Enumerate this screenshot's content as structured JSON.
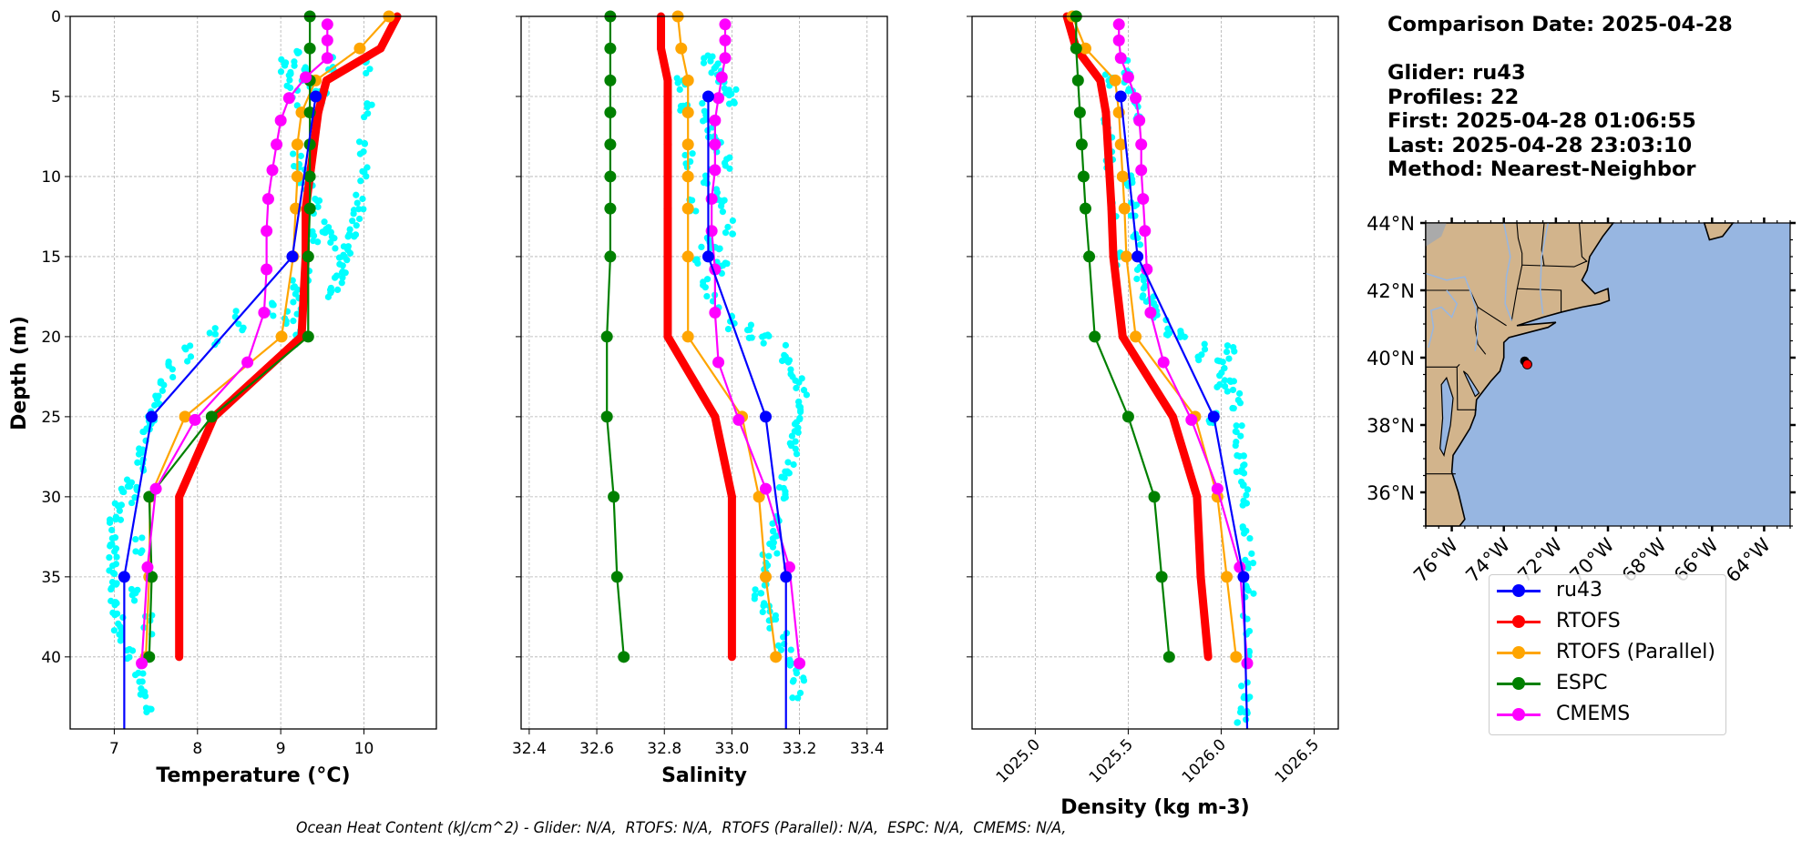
{
  "info": {
    "comparison_date": "Comparison Date: 2025-04-28",
    "glider": "Glider: ru43",
    "profiles": "Profiles: 22",
    "first": "First: 2025-04-28 01:06:55",
    "last": "Last: 2025-04-28 23:03:10",
    "method": "Method: Nearest-Neighbor"
  },
  "footer": "Ocean Heat Content (kJ/cm^2) - Glider: N/A,  RTOFS: N/A,  RTOFS (Parallel): N/A,  ESPC: N/A,  CMEMS: N/A,",
  "legend": [
    {
      "name": "ru43",
      "color": "#0000ff"
    },
    {
      "name": "RTOFS",
      "color": "#ff0000"
    },
    {
      "name": "RTOFS (Parallel)",
      "color": "#ffa500"
    },
    {
      "name": "ESPC",
      "color": "#008000"
    },
    {
      "name": "CMEMS",
      "color": "#ff00ff"
    }
  ],
  "chart_data": [
    {
      "type": "line",
      "title": "",
      "xlabel": "Temperature (°C)",
      "ylabel": "Depth (m)",
      "xlim": [
        6.47,
        10.87
      ],
      "ylim": [
        44.5,
        0
      ],
      "xticks": [
        7,
        8,
        9,
        10
      ],
      "xtick_labels": [
        "7",
        "8",
        "9",
        "10"
      ],
      "yticks": [
        0,
        5,
        10,
        15,
        20,
        25,
        30,
        35,
        40
      ],
      "ytick_labels": [
        "0",
        "5",
        "10",
        "15",
        "20",
        "25",
        "30",
        "35",
        "40"
      ],
      "grid": true,
      "glider_scatter": {
        "color": "#00ffff",
        "description": "raw glider points",
        "clusters": [
          {
            "x": [
              9.05,
              9.1,
              9.15,
              9.2,
              9.3,
              9.4,
              9.5,
              9.6,
              10.05,
              10.0,
              9.2,
              9.25,
              9.35,
              9.45,
              9.55,
              9.65,
              9.75,
              9.3,
              9.15,
              9.2,
              9.1,
              9.2,
              9.4,
              10.05,
              10.0,
              9.95,
              9.9,
              9.85,
              9.8,
              9.75,
              9.7,
              9.6,
              8.9,
              8.5,
              8.2,
              7.9,
              7.7,
              7.6,
              7.5,
              7.45,
              7.4,
              7.35,
              7.3,
              7.2,
              7.1,
              7.05,
              7.0,
              7.0,
              6.98,
              6.97,
              6.98,
              7.0,
              7.05,
              7.1,
              7.2,
              7.3,
              7.35,
              7.4,
              7.4,
              7.3,
              7.25,
              7.25
            ],
            "y": [
              3,
              4,
              5,
              2.5,
              3.5,
              4.5,
              5,
              3,
              3,
              8,
              9,
              10,
              11,
              12,
              13,
              14,
              15,
              16,
              17,
              18,
              19,
              20,
              14,
              6,
              10,
              11.5,
              12.5,
              13.5,
              14.5,
              15.5,
              16.5,
              17.5,
              18.5,
              19,
              20,
              21,
              22,
              23,
              24,
              25,
              26,
              27,
              28,
              29,
              30,
              31,
              32,
              33,
              34,
              35,
              36,
              37,
              38,
              39,
              40,
              41,
              42,
              43,
              38,
              33,
              30,
              36
            ]
          }
        ]
      },
      "series": [
        {
          "name": "ru43",
          "color": "#0000ff",
          "depth": [
            5,
            15,
            25,
            35,
            44.5
          ],
          "values": [
            9.42,
            9.14,
            7.45,
            7.12,
            7.12
          ]
        },
        {
          "name": "RTOFS",
          "color": "#ff0000",
          "linewidth": "thick",
          "depth": [
            0,
            2,
            4,
            6,
            8,
            10,
            12,
            15,
            20,
            25,
            30,
            35,
            40
          ],
          "values": [
            10.4,
            10.2,
            9.55,
            9.45,
            9.4,
            9.35,
            9.3,
            9.3,
            9.25,
            8.2,
            7.78,
            7.78,
            7.78
          ]
        },
        {
          "name": "RTOFS (Parallel)",
          "color": "#ffa500",
          "depth": [
            0,
            2,
            4,
            6,
            8,
            10,
            12,
            15,
            20,
            25,
            30,
            35,
            40
          ],
          "values": [
            10.3,
            9.95,
            9.42,
            9.25,
            9.2,
            9.2,
            9.18,
            9.15,
            9.01,
            7.85,
            7.43,
            7.42,
            7.38
          ]
        },
        {
          "name": "ESPC",
          "color": "#008000",
          "depth": [
            0,
            2,
            4,
            6,
            8,
            10,
            12,
            15,
            20,
            25,
            30,
            35,
            40
          ],
          "values": [
            9.35,
            9.35,
            9.35,
            9.35,
            9.35,
            9.35,
            9.35,
            9.33,
            9.33,
            8.17,
            7.42,
            7.45,
            7.42
          ]
        },
        {
          "name": "CMEMS",
          "color": "#ff00ff",
          "depth": [
            0.5,
            1.5,
            2.6,
            3.8,
            5.1,
            6.5,
            8,
            9.6,
            11.4,
            13.4,
            15.8,
            18.5,
            21.6,
            25.2,
            29.5,
            34.4,
            40.4
          ],
          "values": [
            9.56,
            9.56,
            9.56,
            9.3,
            9.1,
            9.0,
            8.95,
            8.9,
            8.85,
            8.83,
            8.83,
            8.8,
            8.6,
            7.97,
            7.5,
            7.4,
            7.33
          ]
        }
      ]
    },
    {
      "type": "line",
      "title": "",
      "xlabel": "Salinity",
      "ylabel": "",
      "xlim": [
        32.376,
        33.46
      ],
      "ylim": [
        44.5,
        0
      ],
      "xticks": [
        32.4,
        32.6,
        32.8,
        33.0,
        33.2,
        33.4
      ],
      "xtick_labels": [
        "32.4",
        "32.6",
        "32.8",
        "33.0",
        "33.2",
        "33.4"
      ],
      "yticks": [
        0,
        5,
        10,
        15,
        20,
        25,
        30,
        35,
        40
      ],
      "grid": true,
      "glider_scatter": {
        "color": "#00ffff",
        "clusters": [
          {
            "x": [
              32.93,
              32.95,
              32.97,
              32.99,
              33.0,
              32.92,
              32.94,
              32.96,
              32.98,
              32.93,
              32.95,
              32.97,
              32.99,
              32.94,
              32.96,
              32.98,
              32.85,
              32.86,
              32.87,
              32.88,
              32.9,
              32.92,
              32.95,
              33.0,
              33.05,
              33.1,
              33.15,
              33.18,
              33.2,
              33.21,
              33.2,
              33.19,
              33.18,
              33.17,
              33.16,
              33.15,
              33.14,
              33.13,
              33.12,
              33.1,
              33.09,
              33.08,
              33.1,
              33.12,
              33.15,
              33.18,
              33.2,
              33.19
            ],
            "y": [
              3,
              3.5,
              4,
              4.5,
              5,
              6,
              7,
              8,
              9,
              10,
              11,
              12,
              13,
              14,
              15,
              16,
              4,
              6,
              9,
              12,
              15,
              17,
              18,
              19,
              19.5,
              20,
              21,
              22,
              23,
              24,
              25,
              26,
              27,
              28,
              29,
              30,
              31,
              32,
              33,
              34,
              35,
              36,
              37,
              38,
              39,
              40,
              41,
              42
            ]
          }
        ]
      },
      "series": [
        {
          "name": "ru43",
          "color": "#0000ff",
          "depth": [
            5,
            15,
            25,
            35,
            44.5
          ],
          "values": [
            32.93,
            32.93,
            33.1,
            33.16,
            33.16
          ]
        },
        {
          "name": "RTOFS",
          "color": "#ff0000",
          "linewidth": "thick",
          "depth": [
            0,
            2,
            4,
            6,
            8,
            10,
            12,
            15,
            20,
            25,
            30,
            35,
            40
          ],
          "values": [
            32.79,
            32.79,
            32.81,
            32.81,
            32.81,
            32.81,
            32.81,
            32.81,
            32.81,
            32.95,
            33.0,
            33.0,
            33.0
          ]
        },
        {
          "name": "RTOFS (Parallel)",
          "color": "#ffa500",
          "depth": [
            0,
            2,
            4,
            6,
            8,
            10,
            12,
            15,
            20,
            25,
            30,
            35,
            40
          ],
          "values": [
            32.84,
            32.85,
            32.87,
            32.87,
            32.87,
            32.87,
            32.87,
            32.87,
            32.87,
            33.03,
            33.08,
            33.1,
            33.13
          ]
        },
        {
          "name": "ESPC",
          "color": "#008000",
          "depth": [
            0,
            2,
            4,
            6,
            8,
            10,
            12,
            15,
            20,
            25,
            30,
            35,
            40
          ],
          "values": [
            32.64,
            32.64,
            32.64,
            32.64,
            32.64,
            32.64,
            32.64,
            32.64,
            32.63,
            32.63,
            32.65,
            32.66,
            32.68
          ]
        },
        {
          "name": "CMEMS",
          "color": "#ff00ff",
          "depth": [
            0.5,
            1.5,
            2.6,
            3.8,
            5.1,
            6.5,
            8,
            9.6,
            11.4,
            13.4,
            15.8,
            18.5,
            21.6,
            25.2,
            29.5,
            34.4,
            40.4
          ],
          "values": [
            32.98,
            32.98,
            32.98,
            32.97,
            32.96,
            32.95,
            32.95,
            32.95,
            32.94,
            32.94,
            32.95,
            32.95,
            32.96,
            33.02,
            33.1,
            33.17,
            33.2
          ]
        }
      ]
    },
    {
      "type": "line",
      "title": "",
      "xlabel": "Density (kg m-3)",
      "ylabel": "",
      "xlim": [
        1024.66,
        1026.63
      ],
      "ylim": [
        44.5,
        0
      ],
      "xticks": [
        1025.0,
        1025.5,
        1026.0,
        1026.5
      ],
      "xtick_labels": [
        "1025.0",
        "1025.5",
        "1026.0",
        "1026.5"
      ],
      "yticks": [
        0,
        5,
        10,
        15,
        20,
        25,
        30,
        35,
        40
      ],
      "grid": true,
      "glider_scatter": {
        "color": "#00ffff",
        "clusters": [
          {
            "x": [
              1025.48,
              1025.5,
              1025.52,
              1025.54,
              1025.4,
              1025.39,
              1025.4,
              1025.42,
              1025.45,
              1025.5,
              1025.53,
              1025.55,
              1025.57,
              1025.6,
              1025.62,
              1025.65,
              1025.7,
              1025.8,
              1025.9,
              1026.0,
              1026.05,
              1026.08,
              1026.1,
              1026.12,
              1026.13,
              1026.14,
              1026.15,
              1026.15,
              1026.14,
              1026.14,
              1026.13,
              1026.12,
              1026.11,
              1026.1,
              1026.1,
              1025.95,
              1026.0,
              1026.05
            ],
            "y": [
              3,
              4,
              5,
              6,
              4,
              7,
              9,
              12,
              15,
              10,
              12,
              14,
              16,
              17,
              18,
              18.5,
              19.5,
              20,
              21,
              22,
              23,
              24,
              26,
              28,
              30,
              32,
              34,
              36,
              38,
              40,
              42,
              43,
              44,
              29,
              27,
              25,
              23,
              21
            ]
          }
        ]
      },
      "series": [
        {
          "name": "ru43",
          "color": "#0000ff",
          "depth": [
            5,
            15,
            25,
            35,
            44.5
          ],
          "values": [
            1025.46,
            1025.55,
            1025.96,
            1026.12,
            1026.14
          ]
        },
        {
          "name": "RTOFS",
          "color": "#ff0000",
          "linewidth": "thick",
          "depth": [
            0,
            2,
            4,
            6,
            8,
            10,
            12,
            15,
            20,
            25,
            30,
            35,
            40
          ],
          "values": [
            1025.17,
            1025.22,
            1025.35,
            1025.38,
            1025.39,
            1025.4,
            1025.41,
            1025.42,
            1025.47,
            1025.74,
            1025.87,
            1025.89,
            1025.93
          ]
        },
        {
          "name": "RTOFS (Parallel)",
          "color": "#ffa500",
          "depth": [
            0,
            2,
            4,
            6,
            8,
            10,
            12,
            15,
            20,
            25,
            30,
            35,
            40
          ],
          "values": [
            1025.2,
            1025.27,
            1025.43,
            1025.45,
            1025.46,
            1025.47,
            1025.48,
            1025.49,
            1025.54,
            1025.86,
            1025.98,
            1026.03,
            1026.08
          ]
        },
        {
          "name": "ESPC",
          "color": "#008000",
          "depth": [
            0,
            2,
            4,
            6,
            8,
            10,
            12,
            15,
            20,
            25,
            30,
            35,
            40
          ],
          "values": [
            1025.22,
            1025.22,
            1025.23,
            1025.24,
            1025.25,
            1025.26,
            1025.27,
            1025.29,
            1025.32,
            1025.5,
            1025.64,
            1025.68,
            1025.72
          ]
        },
        {
          "name": "CMEMS",
          "color": "#ff00ff",
          "depth": [
            0.5,
            1.5,
            2.6,
            3.8,
            5.1,
            6.5,
            8,
            9.6,
            11.4,
            13.4,
            15.8,
            18.5,
            21.6,
            25.2,
            29.5,
            34.4,
            40.4
          ],
          "values": [
            1025.45,
            1025.45,
            1025.46,
            1025.5,
            1025.54,
            1025.56,
            1025.57,
            1025.57,
            1025.58,
            1025.59,
            1025.6,
            1025.62,
            1025.69,
            1025.84,
            1025.98,
            1026.1,
            1026.14
          ]
        }
      ]
    },
    {
      "type": "map",
      "title": "",
      "lon_range": [
        -77,
        -63
      ],
      "lat_range": [
        35,
        44
      ],
      "xticks": [
        -76,
        -74,
        -72,
        -70,
        -68,
        -66,
        -64
      ],
      "xtick_labels": [
        "76°W",
        "74°W",
        "72°W",
        "70°W",
        "68°W",
        "66°W",
        "64°W"
      ],
      "yticks": [
        36,
        38,
        40,
        42,
        44
      ],
      "ytick_labels": [
        "36°N",
        "38°N",
        "40°N",
        "42°N",
        "44°N"
      ],
      "land_color": "#d2b48c",
      "ocean_color": "#97b6e1",
      "glider_track": {
        "lon": [
          -73.2,
          -73.1
        ],
        "lat": [
          39.9,
          39.8
        ],
        "color": "#ff0000"
      }
    }
  ]
}
